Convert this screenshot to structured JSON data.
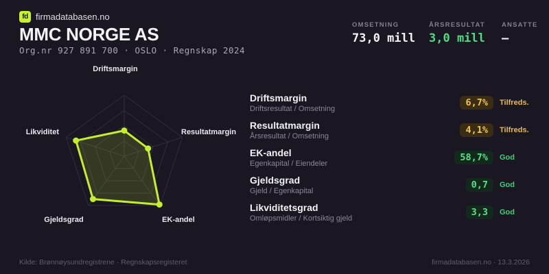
{
  "brand": {
    "logo_text": "fd",
    "name": "firmadatabasen.no"
  },
  "header": {
    "title": "MMC NORGE AS",
    "subtitle": "Org.nr 927 891 700 · OSLO · Regnskap 2024",
    "stats": [
      {
        "label": "OMSETNING",
        "value": "73,0 mill",
        "color": "#f4f3f6"
      },
      {
        "label": "ÅRSRESULTAT",
        "value": "3,0 mill",
        "color": "#4ade80"
      },
      {
        "label": "ANSATTE",
        "value": "–",
        "color": "#f4f3f6"
      }
    ]
  },
  "chart_data": {
    "type": "radar",
    "axes": [
      "Driftsmargin",
      "Resultatmargin",
      "EK-andel",
      "Gjeldsgrad",
      "Likviditet"
    ],
    "values": [
      0.42,
      0.41,
      0.98,
      0.87,
      0.83
    ],
    "value_labels": [
      "6,7%",
      "4,1%",
      "58,7%",
      "0,7",
      "3,3"
    ],
    "max": 1,
    "rings": 4,
    "grid_on": true,
    "legend": "none",
    "stroke_color": "#c3ef2e",
    "fill_color": "rgba(195,239,46,0.16)",
    "grid_color": "#322c3d",
    "point_radius": 4.5
  },
  "metrics": [
    {
      "title": "Driftsmargin",
      "formula": "Driftsresultat / Omsetning",
      "value": "6,7%",
      "rating": "Tilfreds.",
      "status": "warn"
    },
    {
      "title": "Resultatmargin",
      "formula": "Årsresultat / Omsetning",
      "value": "4,1%",
      "rating": "Tilfreds.",
      "status": "warn"
    },
    {
      "title": "EK-andel",
      "formula": "Egenkapital / Eiendeler",
      "value": "58,7%",
      "rating": "God",
      "status": "good"
    },
    {
      "title": "Gjeldsgrad",
      "formula": "Gjeld / Egenkapital",
      "value": "0,7",
      "rating": "God",
      "status": "good"
    },
    {
      "title": "Likviditetsgrad",
      "formula": "Omløpsmidler / Kortsiktig gjeld",
      "value": "3,3",
      "rating": "God",
      "status": "good"
    }
  ],
  "footer": {
    "left": "Kilde: Brønnøysundregistrene · Regnskapsregisteret",
    "right": "firmadatabasen.no · 13.3.2026"
  },
  "colors": {
    "background": "#1b1722",
    "lime": "#c6f22e",
    "green": "#4ade80",
    "amber": "#e8b949",
    "text": "#f4f3f6",
    "muted": "#8b8698"
  }
}
